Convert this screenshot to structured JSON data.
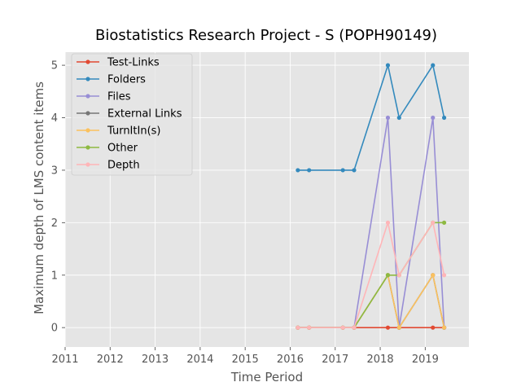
{
  "chart_data": {
    "type": "line",
    "title": "Biostatistics Research Project - S (POPH90149)",
    "xlabel": "Time Period",
    "ylabel": "Maximum depth of LMS content items",
    "xlim": [
      2011.0,
      2019.97
    ],
    "ylim": [
      -0.37,
      5.25
    ],
    "xticks": [
      2011,
      2012,
      2013,
      2014,
      2015,
      2016,
      2017,
      2018,
      2019
    ],
    "yticks": [
      0,
      1,
      2,
      3,
      4,
      5
    ],
    "grid": true,
    "legend_position": "top-left",
    "x": [
      2016.17,
      2016.42,
      2017.17,
      2017.42,
      2018.17,
      2018.42,
      2019.17,
      2019.42
    ],
    "series": [
      {
        "name": "Test-Links",
        "color": "#E24A33",
        "values": [
          0,
          0,
          0,
          0,
          0,
          0,
          0,
          0
        ]
      },
      {
        "name": "Folders",
        "color": "#348ABD",
        "values": [
          3,
          3,
          3,
          3,
          5,
          4,
          5,
          4
        ]
      },
      {
        "name": "Files",
        "color": "#988ED5",
        "values": [
          0,
          0,
          0,
          0,
          4,
          0,
          4,
          0
        ]
      },
      {
        "name": "External Links",
        "color": "#777777",
        "values": [
          0,
          0,
          0,
          0,
          1,
          0,
          1,
          0
        ]
      },
      {
        "name": "TurnItIn(s)",
        "color": "#FBC15E",
        "values": [
          0,
          0,
          0,
          0,
          1,
          0,
          1,
          0
        ]
      },
      {
        "name": "Other",
        "color": "#8EBA42",
        "values": [
          0,
          0,
          0,
          0,
          1,
          1,
          2,
          2
        ]
      },
      {
        "name": "Depth",
        "color": "#FFB5B8",
        "values": [
          0,
          0,
          0,
          0,
          2,
          1,
          2,
          1
        ]
      }
    ]
  }
}
